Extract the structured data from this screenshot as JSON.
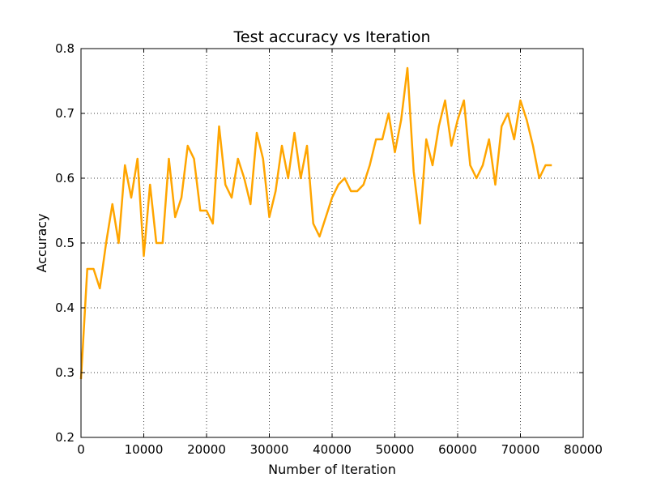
{
  "chart_data": {
    "type": "line",
    "title": "Test accuracy vs Iteration",
    "xlabel": "Number of Iteration",
    "ylabel": "Accuracy",
    "xlim": [
      0,
      80000
    ],
    "ylim": [
      0.2,
      0.8
    ],
    "xticks": [
      0,
      10000,
      20000,
      30000,
      40000,
      50000,
      60000,
      70000,
      80000
    ],
    "yticks": [
      0.2,
      0.3,
      0.4,
      0.5,
      0.6,
      0.7,
      0.8
    ],
    "xtick_labels": [
      "0",
      "10000",
      "20000",
      "30000",
      "40000",
      "50000",
      "60000",
      "70000",
      "80000"
    ],
    "ytick_labels": [
      "0.2",
      "0.3",
      "0.4",
      "0.5",
      "0.6",
      "0.7",
      "0.8"
    ],
    "grid": true,
    "legend": false,
    "series": [
      {
        "color": "#ffa500",
        "x": [
          0,
          1000,
          2000,
          3000,
          4000,
          5000,
          6000,
          7000,
          8000,
          9000,
          10000,
          11000,
          12000,
          13000,
          14000,
          15000,
          16000,
          17000,
          18000,
          19000,
          20000,
          21000,
          22000,
          23000,
          24000,
          25000,
          26000,
          27000,
          28000,
          29000,
          30000,
          31000,
          32000,
          33000,
          34000,
          35000,
          36000,
          37000,
          38000,
          39000,
          40000,
          41000,
          42000,
          43000,
          44000,
          45000,
          46000,
          47000,
          48000,
          49000,
          50000,
          51000,
          52000,
          53000,
          54000,
          55000,
          56000,
          57000,
          58000,
          59000,
          60000,
          61000,
          62000,
          63000,
          64000,
          65000,
          66000,
          67000,
          68000,
          69000,
          70000,
          71000,
          72000,
          73000,
          74000,
          75000
        ],
        "values": [
          0.29,
          0.46,
          0.46,
          0.43,
          0.5,
          0.56,
          0.5,
          0.62,
          0.57,
          0.63,
          0.48,
          0.59,
          0.5,
          0.5,
          0.63,
          0.54,
          0.57,
          0.65,
          0.63,
          0.55,
          0.55,
          0.53,
          0.68,
          0.59,
          0.57,
          0.63,
          0.6,
          0.56,
          0.67,
          0.63,
          0.54,
          0.58,
          0.65,
          0.6,
          0.67,
          0.6,
          0.65,
          0.53,
          0.51,
          0.54,
          0.57,
          0.59,
          0.6,
          0.58,
          0.58,
          0.59,
          0.62,
          0.66,
          0.66,
          0.7,
          0.64,
          0.69,
          0.77,
          0.61,
          0.53,
          0.66,
          0.62,
          0.68,
          0.72,
          0.65,
          0.69,
          0.72,
          0.62,
          0.6,
          0.62,
          0.66,
          0.59,
          0.68,
          0.7,
          0.66,
          0.72,
          0.69,
          0.65,
          0.6,
          0.62,
          0.62
        ]
      }
    ]
  }
}
